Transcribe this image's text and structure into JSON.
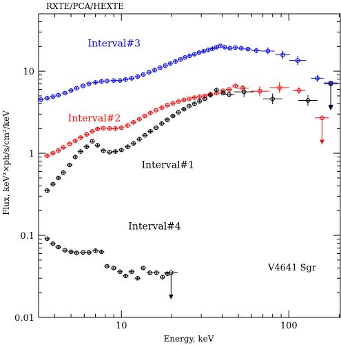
{
  "chart_data": {
    "type": "scatter",
    "title": "RXTE/PCA/HEXTE",
    "xlabel": "Energy, keV",
    "ylabel": "Flux, keV²×ph/s/cm²/keV",
    "xscale": "log",
    "yscale": "log",
    "xlim": [
      3.2,
      205
    ],
    "ylim": [
      0.01,
      50
    ],
    "grid": false,
    "x_tick_labels": [
      {
        "value": 10,
        "label": "10"
      },
      {
        "value": 100,
        "label": "100"
      }
    ],
    "y_tick_labels": [
      {
        "value": 0.01,
        "label": "0.01"
      },
      {
        "value": 0.1,
        "label": "0.1"
      },
      {
        "value": 1,
        "label": "1"
      },
      {
        "value": 10,
        "label": "10"
      }
    ],
    "annotation": "V4641 Sgr",
    "series": [
      {
        "name": "Interval#3",
        "color": "#0000ff",
        "points": [
          [
            3.3,
            4.5
          ],
          [
            3.6,
            4.7
          ],
          [
            3.9,
            4.9
          ],
          [
            4.2,
            5.1
          ],
          [
            4.6,
            5.4
          ],
          [
            5.0,
            5.8
          ],
          [
            5.4,
            6.2
          ],
          [
            5.9,
            6.6
          ],
          [
            6.4,
            7.0
          ],
          [
            7.0,
            7.3
          ],
          [
            7.6,
            7.5
          ],
          [
            8.2,
            7.6
          ],
          [
            9.0,
            7.7
          ],
          [
            9.8,
            7.7
          ],
          [
            10.6,
            7.9
          ],
          [
            11.5,
            8.2
          ],
          [
            12.5,
            8.6
          ],
          [
            13.5,
            9.1
          ],
          [
            14.6,
            9.7
          ],
          [
            15.8,
            10.3
          ],
          [
            17.0,
            11.0
          ],
          [
            18.3,
            11.7
          ],
          [
            19.6,
            12.4
          ],
          [
            21.0,
            13.1
          ],
          [
            22.5,
            13.9
          ],
          [
            24.0,
            14.7
          ],
          [
            25.6,
            15.4
          ],
          [
            27.3,
            16.1
          ],
          [
            29.1,
            16.8
          ],
          [
            31.0,
            17.5
          ],
          [
            33.0,
            18.2
          ],
          [
            35.0,
            18.8
          ],
          [
            37.0,
            19.6
          ],
          [
            39.0,
            20.3
          ],
          [
            41.5,
            19.6
          ],
          [
            44.5,
            19.0
          ],
          [
            48.0,
            19.4
          ],
          [
            52.0,
            19.0
          ],
          [
            57.0,
            18.6
          ],
          [
            64.0,
            17.8
          ],
          [
            75.0,
            17.6
          ],
          [
            92.0,
            15.8
          ],
          [
            113.0,
            13.5
          ],
          [
            148.0,
            8.2
          ]
        ],
        "upper_limits": [
          [
            178.0,
            7.2
          ]
        ]
      },
      {
        "name": "Interval#2",
        "color": "#ff0000",
        "points": [
          [
            3.6,
            0.93
          ],
          [
            3.9,
            1.0
          ],
          [
            4.2,
            1.08
          ],
          [
            4.5,
            1.18
          ],
          [
            4.9,
            1.3
          ],
          [
            5.3,
            1.42
          ],
          [
            5.7,
            1.55
          ],
          [
            6.2,
            1.7
          ],
          [
            6.7,
            1.85
          ],
          [
            7.2,
            1.98
          ],
          [
            7.8,
            2.02
          ],
          [
            8.5,
            2.0
          ],
          [
            9.2,
            2.0
          ],
          [
            10.0,
            2.05
          ],
          [
            10.9,
            2.18
          ],
          [
            11.8,
            2.38
          ],
          [
            12.8,
            2.6
          ],
          [
            13.8,
            2.85
          ],
          [
            14.9,
            3.1
          ],
          [
            16.1,
            3.35
          ],
          [
            17.4,
            3.6
          ],
          [
            18.8,
            3.85
          ],
          [
            20.3,
            4.05
          ],
          [
            21.9,
            4.25
          ],
          [
            23.6,
            4.45
          ],
          [
            25.4,
            4.6
          ],
          [
            27.3,
            4.75
          ],
          [
            29.3,
            4.9
          ],
          [
            31.5,
            5.0
          ],
          [
            34.0,
            5.25
          ],
          [
            37.0,
            5.4
          ],
          [
            40.5,
            5.75
          ],
          [
            44.0,
            6.0
          ],
          [
            48.0,
            6.6
          ],
          [
            53.0,
            6.2
          ],
          [
            67.0,
            5.7
          ],
          [
            88.0,
            6.3
          ],
          [
            115.0,
            5.8
          ]
        ],
        "upper_limits": [
          [
            158.0,
            2.7
          ]
        ]
      },
      {
        "name": "Interval#1",
        "color": "#000000",
        "points": [
          [
            3.6,
            0.35
          ],
          [
            3.9,
            0.42
          ],
          [
            4.2,
            0.5
          ],
          [
            4.5,
            0.58
          ],
          [
            4.9,
            0.72
          ],
          [
            5.3,
            0.9
          ],
          [
            5.7,
            1.05
          ],
          [
            6.2,
            1.2
          ],
          [
            6.7,
            1.4
          ],
          [
            7.2,
            1.25
          ],
          [
            7.8,
            1.07
          ],
          [
            8.5,
            1.03
          ],
          [
            9.2,
            1.05
          ],
          [
            10.0,
            1.1
          ],
          [
            10.9,
            1.2
          ],
          [
            11.8,
            1.32
          ],
          [
            12.8,
            1.48
          ],
          [
            13.8,
            1.65
          ],
          [
            14.9,
            1.85
          ],
          [
            16.1,
            2.05
          ],
          [
            17.4,
            2.3
          ],
          [
            18.8,
            2.55
          ],
          [
            20.3,
            2.85
          ],
          [
            21.9,
            3.15
          ],
          [
            23.6,
            3.45
          ],
          [
            25.4,
            3.75
          ],
          [
            27.3,
            4.0
          ],
          [
            29.3,
            4.3
          ],
          [
            31.5,
            4.6
          ],
          [
            34.0,
            5.1
          ],
          [
            37.0,
            5.9
          ],
          [
            40.5,
            5.4
          ],
          [
            44.0,
            5.2
          ],
          [
            54.0,
            5.6
          ],
          [
            80.0,
            4.6
          ],
          [
            130.0,
            4.4
          ]
        ],
        "upper_limits": [
          [
            178.0,
            7.0
          ]
        ]
      },
      {
        "name": "Interval#4",
        "color": "#000000",
        "points": [
          [
            3.6,
            0.091
          ],
          [
            3.9,
            0.079
          ],
          [
            4.2,
            0.072
          ],
          [
            4.6,
            0.066
          ],
          [
            5.0,
            0.063
          ],
          [
            5.4,
            0.061
          ],
          [
            5.9,
            0.062
          ],
          [
            6.4,
            0.062
          ],
          [
            7.0,
            0.065
          ],
          [
            7.6,
            0.063
          ],
          [
            8.2,
            0.042
          ],
          [
            9.0,
            0.04
          ],
          [
            9.8,
            0.036
          ],
          [
            10.6,
            0.032
          ],
          [
            11.5,
            0.036
          ],
          [
            12.5,
            0.03
          ],
          [
            13.5,
            0.04
          ],
          [
            14.8,
            0.035
          ],
          [
            16.2,
            0.035
          ],
          [
            17.6,
            0.031
          ],
          [
            18.8,
            0.034
          ]
        ],
        "upper_limits": [
          [
            19.8,
            0.035
          ]
        ]
      }
    ],
    "labels": [
      {
        "series": "Interval#3",
        "text": "Interval#3",
        "x": 6.3,
        "y": 20.0
      },
      {
        "series": "Interval#2",
        "text": "Interval#2",
        "x": 4.8,
        "y": 2.45
      },
      {
        "series": "Interval#1",
        "text": "Interval#1",
        "x": 13.2,
        "y": 0.66
      },
      {
        "series": "Interval#4",
        "text": "Interval#4",
        "x": 11.0,
        "y": 0.118
      }
    ]
  }
}
